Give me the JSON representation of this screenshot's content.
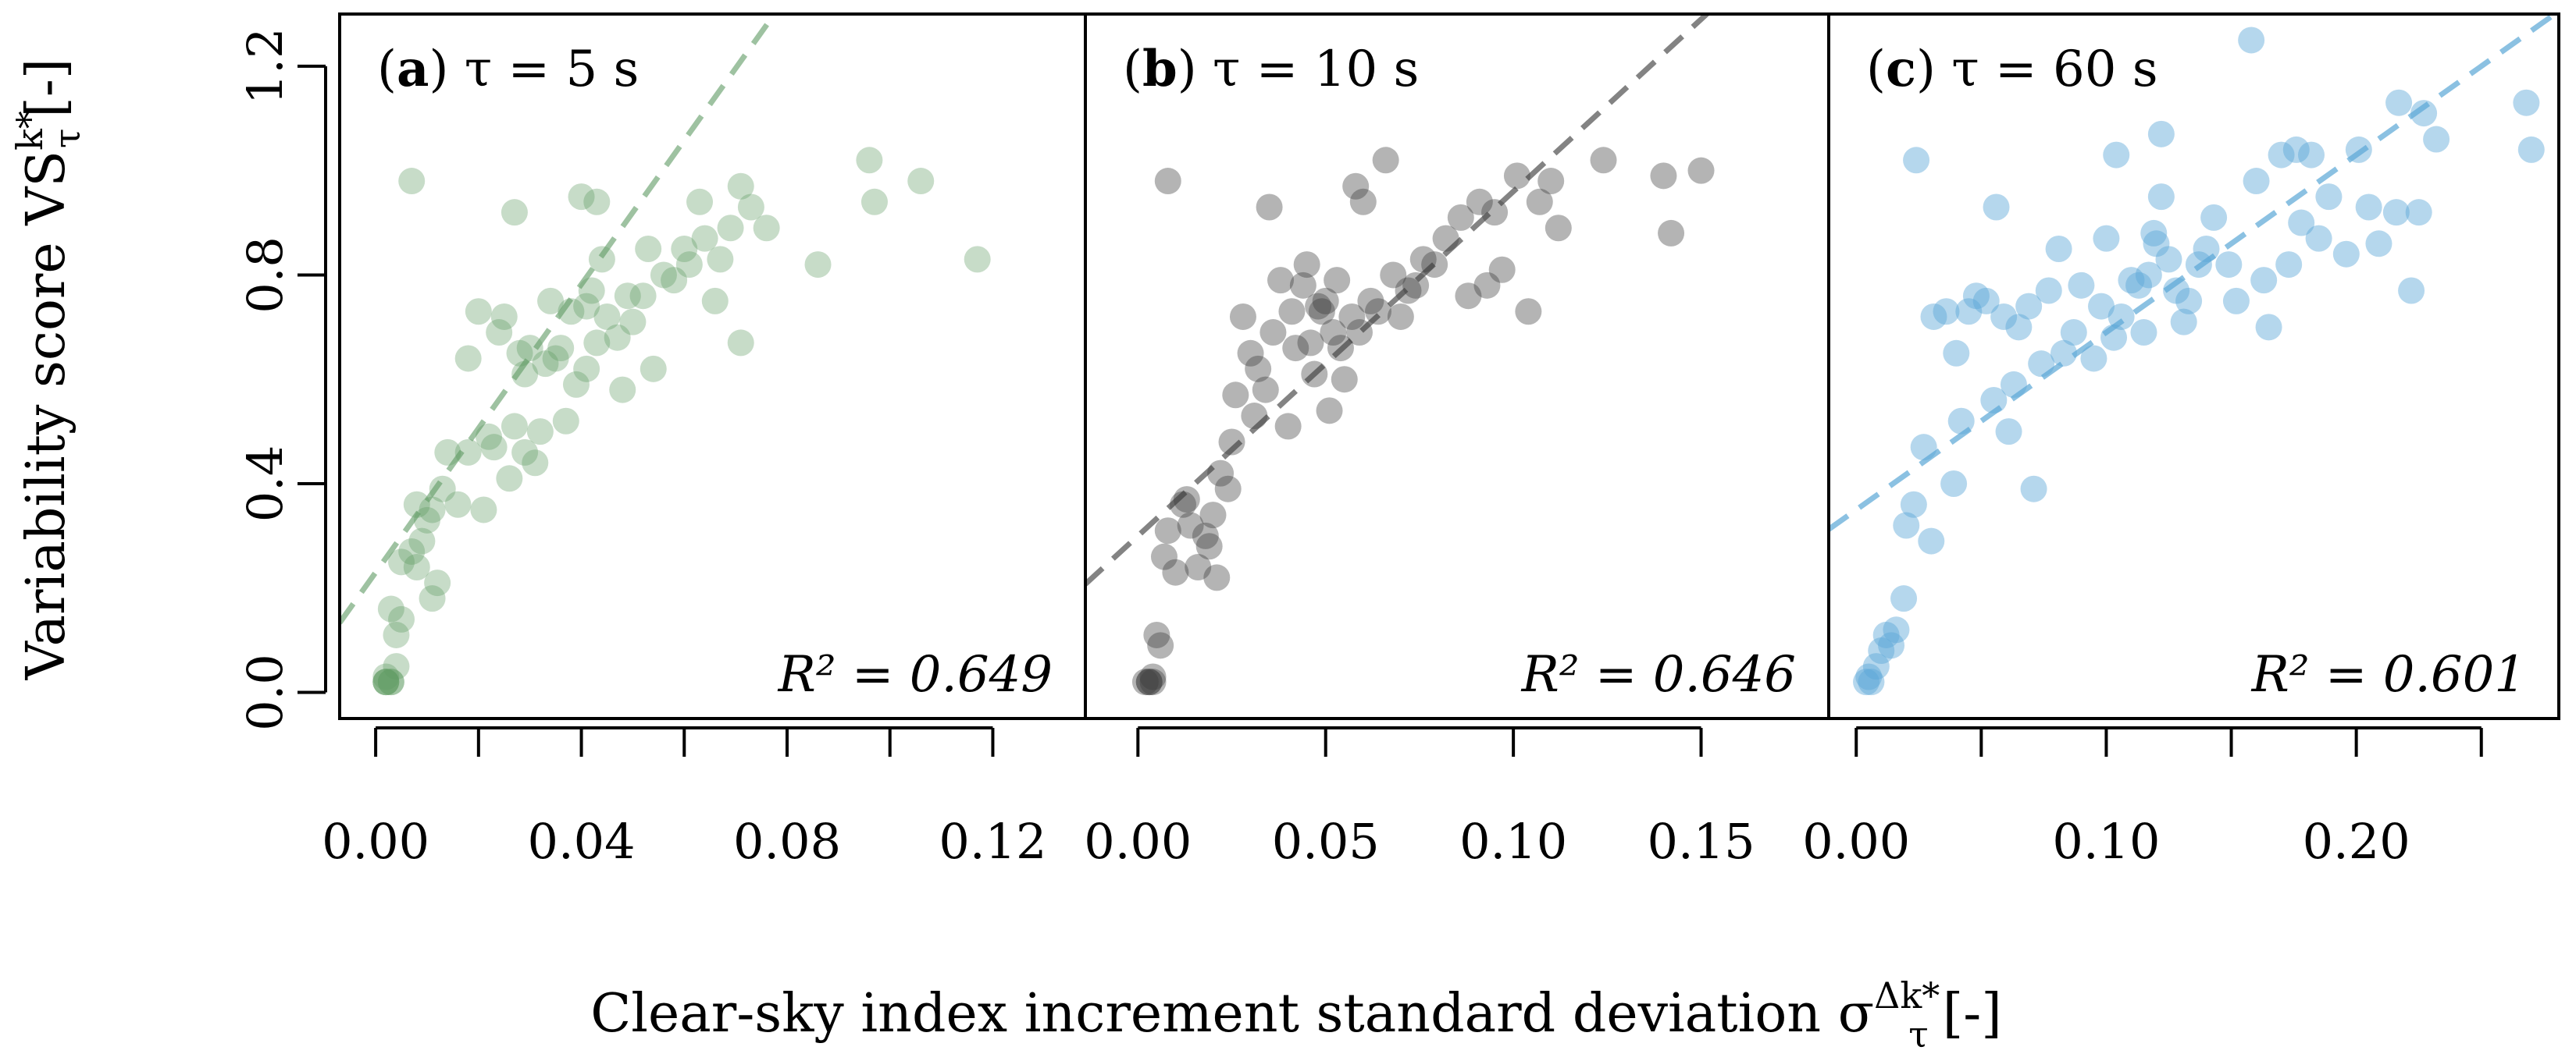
{
  "chart_data": {
    "type": "scatter",
    "y_axis_label": "Variability score VS",
    "y_axis_label_sup": "k*",
    "y_axis_label_sub": "τ",
    "y_axis_label_unit": "[-]",
    "x_axis_label": "Clear-sky index increment standard deviation σ",
    "x_axis_label_sup": "Δk*",
    "x_axis_label_sub": "τ",
    "x_axis_label_unit": "[-]",
    "ylim": [
      -0.05,
      1.3
    ],
    "yticks": [
      0.0,
      0.4,
      0.8,
      1.2
    ],
    "ytick_labels": [
      "0.0",
      "0.4",
      "0.8",
      "1.2"
    ],
    "panels": [
      {
        "tag": "a",
        "title": "τ = 5 s",
        "r2_label": "R² = 0.649",
        "color": "#5e9a62",
        "alpha": 0.35,
        "xlim": [
          -0.007,
          0.138
        ],
        "xticks": [
          0.0,
          0.02,
          0.04,
          0.06,
          0.08,
          0.1,
          0.12
        ],
        "xtick_labels": [
          "0.00",
          "",
          "0.04",
          "",
          "0.08",
          "",
          "0.12"
        ],
        "fit": {
          "intercept": 0.23,
          "slope": 13.8
        },
        "points": [
          [
            0.002,
            0.02
          ],
          [
            0.002,
            0.02
          ],
          [
            0.002,
            0.02
          ],
          [
            0.003,
            0.02
          ],
          [
            0.003,
            0.02
          ],
          [
            0.002,
            0.03
          ],
          [
            0.004,
            0.05
          ],
          [
            0.004,
            0.11
          ],
          [
            0.005,
            0.14
          ],
          [
            0.003,
            0.16
          ],
          [
            0.005,
            0.25
          ],
          [
            0.007,
            0.27
          ],
          [
            0.008,
            0.24
          ],
          [
            0.009,
            0.29
          ],
          [
            0.008,
            0.36
          ],
          [
            0.01,
            0.33
          ],
          [
            0.011,
            0.35
          ],
          [
            0.011,
            0.18
          ],
          [
            0.012,
            0.21
          ],
          [
            0.013,
            0.39
          ],
          [
            0.014,
            0.46
          ],
          [
            0.016,
            0.36
          ],
          [
            0.018,
            0.46
          ],
          [
            0.018,
            0.64
          ],
          [
            0.02,
            0.73
          ],
          [
            0.021,
            0.35
          ],
          [
            0.022,
            0.49
          ],
          [
            0.023,
            0.47
          ],
          [
            0.024,
            0.69
          ],
          [
            0.025,
            0.72
          ],
          [
            0.026,
            0.41
          ],
          [
            0.027,
            0.51
          ],
          [
            0.027,
            0.92
          ],
          [
            0.028,
            0.65
          ],
          [
            0.029,
            0.61
          ],
          [
            0.029,
            0.46
          ],
          [
            0.03,
            0.66
          ],
          [
            0.031,
            0.44
          ],
          [
            0.032,
            0.5
          ],
          [
            0.033,
            0.63
          ],
          [
            0.034,
            0.75
          ],
          [
            0.035,
            0.64
          ],
          [
            0.036,
            0.66
          ],
          [
            0.037,
            0.52
          ],
          [
            0.038,
            0.73
          ],
          [
            0.039,
            0.59
          ],
          [
            0.04,
            0.95
          ],
          [
            0.041,
            0.62
          ],
          [
            0.041,
            0.74
          ],
          [
            0.042,
            0.77
          ],
          [
            0.043,
            0.67
          ],
          [
            0.043,
            0.94
          ],
          [
            0.044,
            0.83
          ],
          [
            0.045,
            0.72
          ],
          [
            0.047,
            0.68
          ],
          [
            0.048,
            0.58
          ],
          [
            0.049,
            0.76
          ],
          [
            0.05,
            0.71
          ],
          [
            0.052,
            0.76
          ],
          [
            0.053,
            0.85
          ],
          [
            0.054,
            0.62
          ],
          [
            0.056,
            0.8
          ],
          [
            0.058,
            0.79
          ],
          [
            0.06,
            0.85
          ],
          [
            0.061,
            0.82
          ],
          [
            0.063,
            0.94
          ],
          [
            0.064,
            0.87
          ],
          [
            0.066,
            0.75
          ],
          [
            0.067,
            0.83
          ],
          [
            0.069,
            0.89
          ],
          [
            0.071,
            0.97
          ],
          [
            0.071,
            0.67
          ],
          [
            0.073,
            0.93
          ],
          [
            0.076,
            0.89
          ],
          [
            0.086,
            0.82
          ],
          [
            0.096,
            1.02
          ],
          [
            0.097,
            0.94
          ],
          [
            0.106,
            0.98
          ],
          [
            0.117,
            0.83
          ],
          [
            0.007,
            0.98
          ]
        ]
      },
      {
        "tag": "b",
        "title": "τ = 10 s",
        "r2_label": "R² = 0.646",
        "color": "#3a3a3a",
        "alpha": 0.38,
        "xlim": [
          -0.014,
          0.184
        ],
        "xticks": [
          0.0,
          0.05,
          0.1,
          0.15
        ],
        "xtick_labels": [
          "0.00",
          "0.05",
          "0.10",
          "0.15"
        ],
        "fit": {
          "intercept": 0.3,
          "slope": 6.6
        },
        "points": [
          [
            0.002,
            0.02
          ],
          [
            0.003,
            0.02
          ],
          [
            0.003,
            0.02
          ],
          [
            0.004,
            0.02
          ],
          [
            0.004,
            0.03
          ],
          [
            0.005,
            0.11
          ],
          [
            0.006,
            0.09
          ],
          [
            0.007,
            0.26
          ],
          [
            0.008,
            0.31
          ],
          [
            0.01,
            0.23
          ],
          [
            0.012,
            0.36
          ],
          [
            0.013,
            0.37
          ],
          [
            0.014,
            0.32
          ],
          [
            0.016,
            0.24
          ],
          [
            0.018,
            0.3
          ],
          [
            0.019,
            0.28
          ],
          [
            0.02,
            0.34
          ],
          [
            0.021,
            0.22
          ],
          [
            0.022,
            0.42
          ],
          [
            0.024,
            0.39
          ],
          [
            0.025,
            0.48
          ],
          [
            0.026,
            0.57
          ],
          [
            0.028,
            0.72
          ],
          [
            0.03,
            0.65
          ],
          [
            0.031,
            0.53
          ],
          [
            0.032,
            0.62
          ],
          [
            0.034,
            0.58
          ],
          [
            0.035,
            0.93
          ],
          [
            0.036,
            0.69
          ],
          [
            0.038,
            0.79
          ],
          [
            0.04,
            0.51
          ],
          [
            0.041,
            0.73
          ],
          [
            0.042,
            0.66
          ],
          [
            0.044,
            0.78
          ],
          [
            0.045,
            0.82
          ],
          [
            0.046,
            0.67
          ],
          [
            0.047,
            0.61
          ],
          [
            0.048,
            0.74
          ],
          [
            0.049,
            0.73
          ],
          [
            0.05,
            0.75
          ],
          [
            0.051,
            0.54
          ],
          [
            0.052,
            0.69
          ],
          [
            0.053,
            0.79
          ],
          [
            0.054,
            0.66
          ],
          [
            0.055,
            0.6
          ],
          [
            0.057,
            0.72
          ],
          [
            0.058,
            0.97
          ],
          [
            0.059,
            0.69
          ],
          [
            0.06,
            0.94
          ],
          [
            0.062,
            0.75
          ],
          [
            0.064,
            0.73
          ],
          [
            0.066,
            1.02
          ],
          [
            0.068,
            0.8
          ],
          [
            0.07,
            0.72
          ],
          [
            0.072,
            0.77
          ],
          [
            0.074,
            0.78
          ],
          [
            0.076,
            0.83
          ],
          [
            0.079,
            0.82
          ],
          [
            0.082,
            0.87
          ],
          [
            0.086,
            0.91
          ],
          [
            0.088,
            0.76
          ],
          [
            0.091,
            0.94
          ],
          [
            0.093,
            0.78
          ],
          [
            0.095,
            0.92
          ],
          [
            0.097,
            0.81
          ],
          [
            0.101,
            0.99
          ],
          [
            0.104,
            0.73
          ],
          [
            0.107,
            0.94
          ],
          [
            0.11,
            0.98
          ],
          [
            0.112,
            0.89
          ],
          [
            0.124,
            1.02
          ],
          [
            0.14,
            0.99
          ],
          [
            0.142,
            0.88
          ],
          [
            0.15,
            1.0
          ],
          [
            0.008,
            0.98
          ]
        ]
      },
      {
        "tag": "c",
        "title": "τ = 60 s",
        "r2_label": "R² = 0.601",
        "color": "#5aa6d6",
        "alpha": 0.45,
        "xlim": [
          -0.011,
          0.281
        ],
        "xticks": [
          0.0,
          0.05,
          0.1,
          0.15,
          0.2,
          0.25
        ],
        "xtick_labels": [
          "0.00",
          "",
          "0.10",
          "",
          "0.20",
          ""
        ],
        "fit": {
          "intercept": 0.35,
          "slope": 3.4
        },
        "points": [
          [
            0.004,
            0.02
          ],
          [
            0.005,
            0.03
          ],
          [
            0.006,
            0.02
          ],
          [
            0.008,
            0.05
          ],
          [
            0.01,
            0.08
          ],
          [
            0.012,
            0.11
          ],
          [
            0.014,
            0.09
          ],
          [
            0.016,
            0.12
          ],
          [
            0.019,
            0.18
          ],
          [
            0.02,
            0.32
          ],
          [
            0.023,
            0.36
          ],
          [
            0.024,
            1.02
          ],
          [
            0.027,
            0.47
          ],
          [
            0.03,
            0.29
          ],
          [
            0.031,
            0.72
          ],
          [
            0.036,
            0.73
          ],
          [
            0.039,
            0.4
          ],
          [
            0.04,
            0.65
          ],
          [
            0.042,
            0.52
          ],
          [
            0.045,
            0.73
          ],
          [
            0.048,
            0.76
          ],
          [
            0.052,
            0.75
          ],
          [
            0.055,
            0.56
          ],
          [
            0.056,
            0.93
          ],
          [
            0.059,
            0.72
          ],
          [
            0.061,
            0.5
          ],
          [
            0.063,
            0.59
          ],
          [
            0.065,
            0.7
          ],
          [
            0.069,
            0.74
          ],
          [
            0.071,
            0.39
          ],
          [
            0.074,
            0.63
          ],
          [
            0.077,
            0.77
          ],
          [
            0.081,
            0.85
          ],
          [
            0.083,
            0.65
          ],
          [
            0.087,
            0.69
          ],
          [
            0.09,
            0.78
          ],
          [
            0.095,
            0.64
          ],
          [
            0.098,
            0.74
          ],
          [
            0.1,
            0.87
          ],
          [
            0.103,
            0.68
          ],
          [
            0.104,
            1.03
          ],
          [
            0.106,
            0.72
          ],
          [
            0.11,
            0.79
          ],
          [
            0.113,
            0.78
          ],
          [
            0.115,
            0.69
          ],
          [
            0.117,
            0.8
          ],
          [
            0.119,
            0.88
          ],
          [
            0.12,
            0.86
          ],
          [
            0.122,
            0.95
          ],
          [
            0.122,
            1.07
          ],
          [
            0.125,
            0.83
          ],
          [
            0.128,
            0.77
          ],
          [
            0.131,
            0.71
          ],
          [
            0.133,
            0.75
          ],
          [
            0.137,
            0.82
          ],
          [
            0.14,
            0.85
          ],
          [
            0.143,
            0.91
          ],
          [
            0.149,
            0.82
          ],
          [
            0.152,
            0.75
          ],
          [
            0.158,
            1.25
          ],
          [
            0.16,
            0.98
          ],
          [
            0.163,
            0.79
          ],
          [
            0.165,
            0.7
          ],
          [
            0.17,
            1.03
          ],
          [
            0.173,
            0.82
          ],
          [
            0.176,
            1.04
          ],
          [
            0.178,
            0.9
          ],
          [
            0.182,
            1.03
          ],
          [
            0.185,
            0.87
          ],
          [
            0.189,
            0.95
          ],
          [
            0.196,
            0.84
          ],
          [
            0.201,
            1.04
          ],
          [
            0.205,
            0.93
          ],
          [
            0.209,
            0.86
          ],
          [
            0.216,
            0.92
          ],
          [
            0.217,
            1.13
          ],
          [
            0.222,
            0.77
          ],
          [
            0.225,
            0.92
          ],
          [
            0.227,
            1.11
          ],
          [
            0.232,
            1.06
          ],
          [
            0.268,
            1.13
          ],
          [
            0.27,
            1.04
          ]
        ]
      }
    ]
  }
}
